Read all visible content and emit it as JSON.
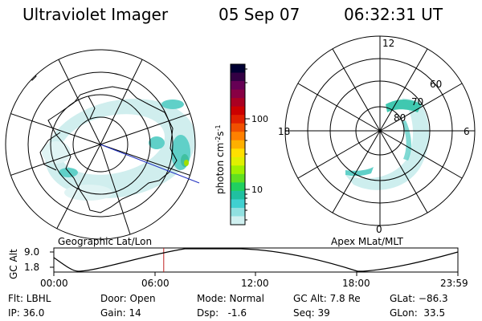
{
  "header": {
    "instrument": "Ultraviolet Imager",
    "date": "05 Sep 07",
    "time": "06:32:31 UT"
  },
  "left_map": {
    "caption": "Geographic Lat/Lon"
  },
  "right_map": {
    "caption": "Apex MLat/MLT",
    "mlt_labels": [
      "12",
      "18",
      "6",
      "0"
    ],
    "lat_labels": [
      "60",
      "70",
      "80"
    ]
  },
  "colorbar": {
    "unit_label": "photon cm",
    "unit_sup1": "-2",
    "unit_mid": "s",
    "unit_sup2": "-1",
    "ticks": [
      "100",
      "10"
    ],
    "colors": [
      "#000033",
      "#330044",
      "#660055",
      "#880044",
      "#aa0022",
      "#cc0000",
      "#e02000",
      "#f05000",
      "#ff8000",
      "#ffb000",
      "#ffe000",
      "#e0f000",
      "#a0f000",
      "#60e020",
      "#20d060",
      "#20c0a0",
      "#40d0d0",
      "#90e0e0",
      "#d0f0f0"
    ]
  },
  "altitude_plot": {
    "axis_title": "GC Alt",
    "y_ticks": [
      "9.0",
      "1.8"
    ],
    "x_ticks": [
      "00:00",
      "06:00",
      "12:00",
      "18:00",
      "23:59"
    ],
    "current_time_fraction": 0.272
  },
  "status": {
    "flt": "Flt: LBHL",
    "ip": "IP: 36.0",
    "door": "Door: Open",
    "gain": "Gain: 14",
    "mode": "Mode: Normal",
    "dsp": "Dsp:   -1.6",
    "gc_alt": "GC Alt: 7.8 Re",
    "seq": "Seq: 39",
    "glat": "GLat: −86.3",
    "glon": "GLon:  33.5"
  }
}
